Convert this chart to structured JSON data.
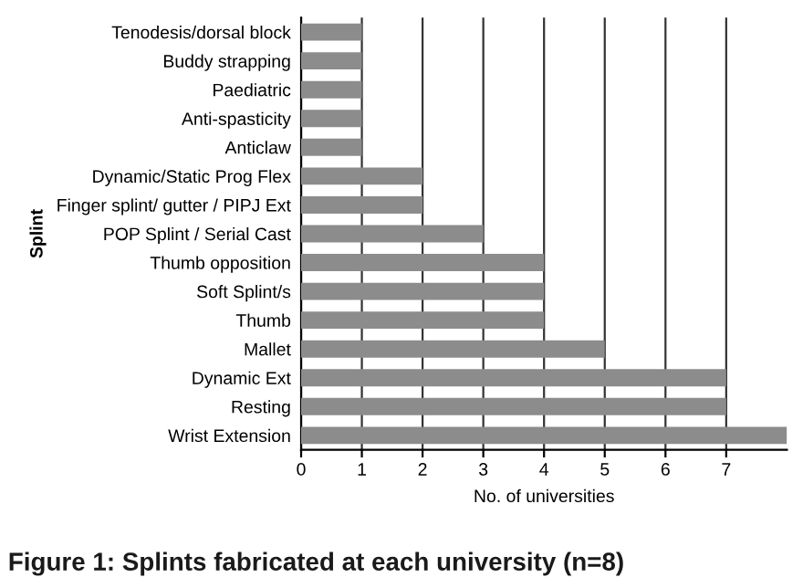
{
  "chart_data": {
    "type": "bar",
    "orientation": "horizontal",
    "categories": [
      "Tenodesis/dorsal block",
      "Buddy strapping",
      "Paediatric",
      "Anti-spasticity",
      "Anticlaw",
      "Dynamic/Static Prog Flex",
      "Finger splint/ gutter / PIPJ Ext",
      "POP Splint / Serial Cast",
      "Thumb opposition",
      "Soft Splint/s",
      "Thumb",
      "Mallet",
      "Dynamic Ext",
      "Resting",
      "Wrist Extension"
    ],
    "values": [
      1,
      1,
      1,
      1,
      1,
      2,
      2,
      3,
      4,
      4,
      4,
      5,
      7,
      7,
      8
    ],
    "color": "#8c8c8c",
    "xlim": [
      0,
      8
    ],
    "xticks": [
      0,
      1,
      2,
      3,
      4,
      5,
      6,
      7
    ],
    "xlabel": "No. of universities",
    "ylabel": "Splint",
    "grid": "x",
    "annotations": [
      "Figure 1: Splints fabricated at each university (n=8)"
    ]
  }
}
